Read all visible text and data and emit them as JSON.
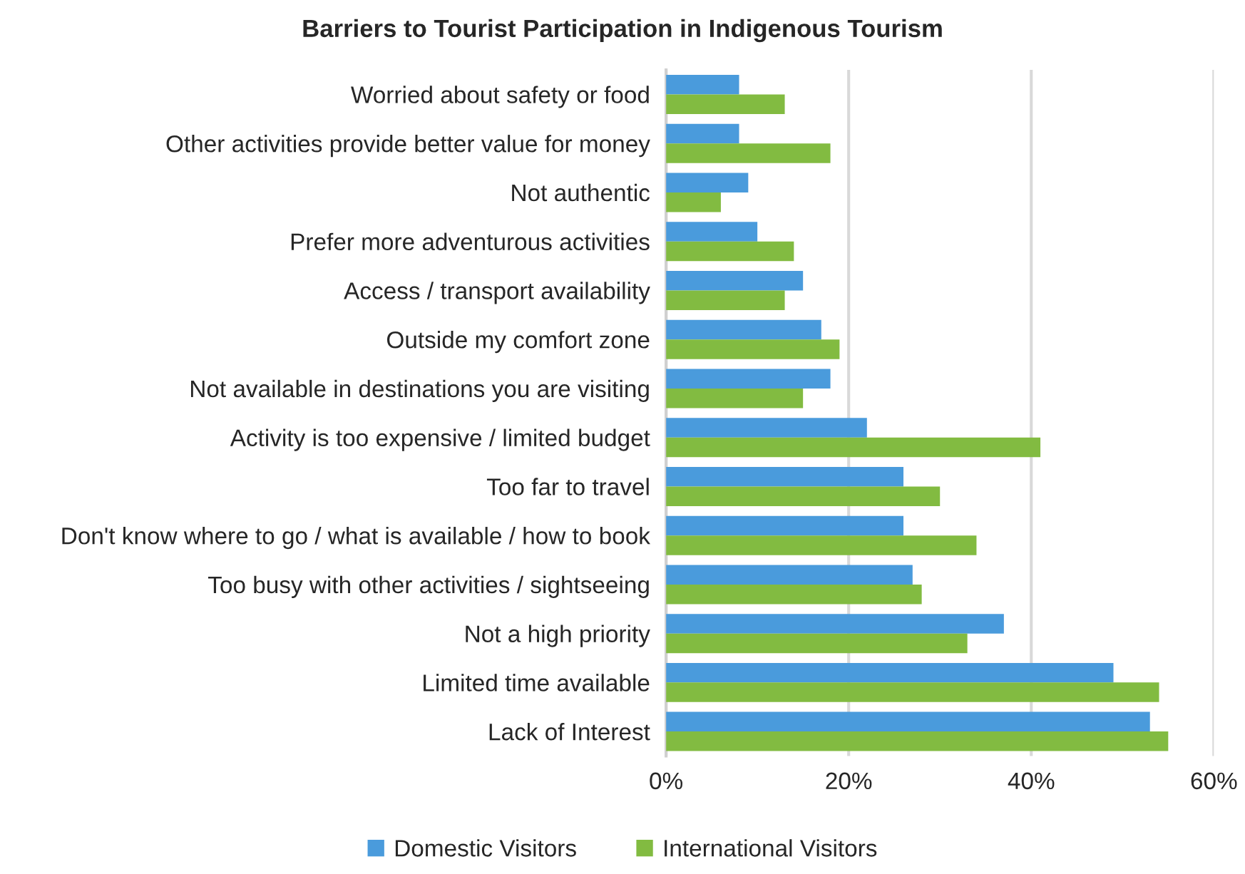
{
  "chart_data": {
    "type": "bar",
    "orientation": "horizontal",
    "title": "Barriers to Tourist Participation in Indigenous Tourism",
    "categories": [
      "Worried about safety or food",
      "Other activities provide better value for money",
      "Not authentic",
      "Prefer more adventurous activities",
      "Access / transport availability",
      "Outside my comfort zone",
      "Not available in destinations you are visiting",
      "Activity is too expensive / limited budget",
      "Too far to travel",
      "Don't know where to go / what is available / how to book",
      "Too busy with other activities / sightseeing",
      "Not a high priority",
      "Limited time available",
      "Lack of Interest"
    ],
    "series": [
      {
        "name": "Domestic Visitors",
        "color": "#4a9bdc",
        "values": [
          8,
          8,
          9,
          10,
          15,
          17,
          18,
          22,
          26,
          26,
          27,
          37,
          49,
          53
        ]
      },
      {
        "name": "International Visitors",
        "color": "#82bb41",
        "values": [
          13,
          18,
          6,
          14,
          13,
          19,
          15,
          41,
          30,
          34,
          28,
          33,
          54,
          55
        ]
      }
    ],
    "xlim": [
      0,
      60
    ],
    "xticks": [
      {
        "value": 0,
        "label": "0%"
      },
      {
        "value": 20,
        "label": "20%"
      },
      {
        "value": 40,
        "label": "40%"
      },
      {
        "value": 60,
        "label": "60%"
      }
    ],
    "grid": "x",
    "legend": "bottom"
  }
}
